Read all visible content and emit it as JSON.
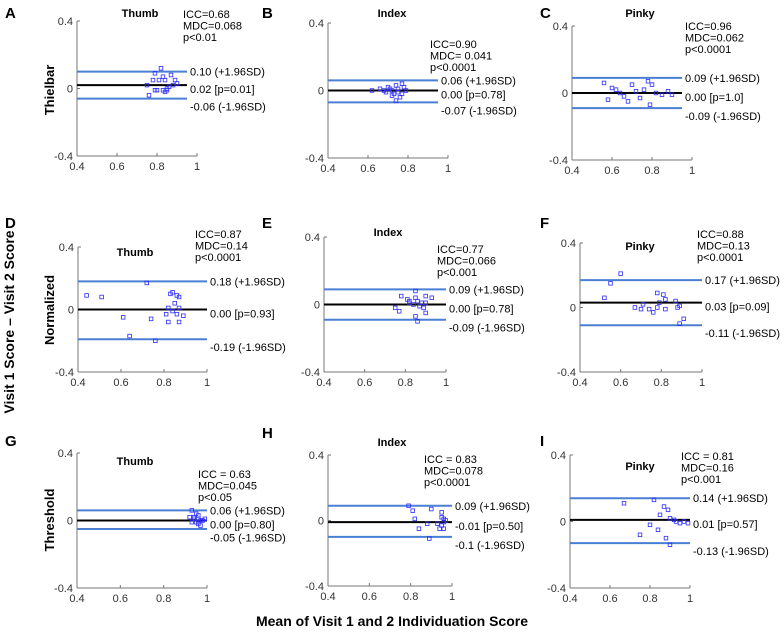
{
  "figure": {
    "ylabel": "Visit 1 Score – Visit 2 Score",
    "xlabel": "Mean of Visit 1 and 2 Individuation Score",
    "row_labels": [
      "Thielbar",
      "Normalized",
      "Threshold"
    ],
    "colors": {
      "limit_line": "#4a7fd4",
      "mean_line": "#000000",
      "points": "#2b2bff"
    }
  },
  "chart_data": [
    {
      "panel": "A",
      "type": "scatter",
      "title": "Thumb",
      "stats": [
        "ICC=0.68",
        "MDC=0.068",
        "p<0.01"
      ],
      "xlim": [
        0.4,
        1
      ],
      "ylim": [
        -0.4,
        0.4
      ],
      "xticks": [
        "0.4",
        "0.6",
        "0.8",
        "1"
      ],
      "yticks": [
        "0.4",
        "0",
        "-0.4"
      ],
      "upper": 0.1,
      "mean": 0.02,
      "lower": -0.06,
      "line_xmax": 0.95,
      "upper_label": "0.10 (+1.96SD)",
      "mean_label": "0.02 [p=0.01]",
      "lower_label": "-0.06 (-1.96SD)",
      "points": [
        [
          0.82,
          0.12
        ],
        [
          0.79,
          0.09
        ],
        [
          0.87,
          0.08
        ],
        [
          0.83,
          0.07
        ],
        [
          0.78,
          0.05
        ],
        [
          0.81,
          0.05
        ],
        [
          0.84,
          0.05
        ],
        [
          0.89,
          0.05
        ],
        [
          0.9,
          0.03
        ],
        [
          0.88,
          0.02
        ],
        [
          0.75,
          0.02
        ],
        [
          0.86,
          0.01
        ],
        [
          0.79,
          -0.01
        ],
        [
          0.83,
          -0.01
        ],
        [
          0.85,
          -0.01
        ],
        [
          0.84,
          -0.02
        ],
        [
          0.8,
          -0.01
        ],
        [
          0.76,
          -0.04
        ],
        [
          0.85,
          0.0
        ]
      ]
    },
    {
      "panel": "B",
      "type": "scatter",
      "title": "Index",
      "stats": [
        "ICC=0.90",
        "MDC= 0.041",
        "p<0.0001"
      ],
      "xlim": [
        0.4,
        1
      ],
      "ylim": [
        -0.4,
        0.4
      ],
      "xticks": [
        "0.4",
        "0.6",
        "0.8",
        "1"
      ],
      "yticks": [
        "0.4",
        "0",
        "-0.4"
      ],
      "upper": 0.06,
      "mean": 0.0,
      "lower": -0.07,
      "line_xmax": 0.95,
      "upper_label": "0.06 (+1.96SD)",
      "mean_label": "0.00 [p=0.78]",
      "lower_label": "-0.07 (-1.96SD)",
      "points": [
        [
          0.62,
          0.0
        ],
        [
          0.66,
          0.01
        ],
        [
          0.69,
          -0.01
        ],
        [
          0.7,
          0.02
        ],
        [
          0.72,
          0.0
        ],
        [
          0.73,
          -0.02
        ],
        [
          0.74,
          0.03
        ],
        [
          0.75,
          0.01
        ],
        [
          0.76,
          -0.04
        ],
        [
          0.77,
          0.04
        ],
        [
          0.78,
          0.02
        ],
        [
          0.74,
          -0.06
        ],
        [
          0.72,
          -0.03
        ],
        [
          0.79,
          0.0
        ],
        [
          0.75,
          -0.01
        ],
        [
          0.71,
          0.01
        ],
        [
          0.77,
          -0.02
        ],
        [
          0.68,
          0.0
        ]
      ]
    },
    {
      "panel": "C",
      "type": "scatter",
      "title": "Pinky",
      "stats": [
        "ICC=0.96",
        "MDC=0.062",
        "p<0.0001"
      ],
      "xlim": [
        0.4,
        1
      ],
      "ylim": [
        -0.4,
        0.4
      ],
      "xticks": [
        "0.4",
        "0.6",
        "0.8",
        "1"
      ],
      "yticks": [
        "0.4",
        "0",
        "-0.4"
      ],
      "upper": 0.09,
      "mean": 0.0,
      "lower": -0.09,
      "line_xmax": 0.95,
      "upper_label": "0.09 (+1.96SD)",
      "mean_label": "0.00 [p=1.0]",
      "lower_label": "-0.09 (-1.96SD)",
      "points": [
        [
          0.56,
          0.06
        ],
        [
          0.6,
          0.03
        ],
        [
          0.64,
          0.0
        ],
        [
          0.66,
          -0.02
        ],
        [
          0.7,
          0.05
        ],
        [
          0.72,
          0.01
        ],
        [
          0.74,
          -0.03
        ],
        [
          0.76,
          0.02
        ],
        [
          0.78,
          0.07
        ],
        [
          0.79,
          -0.07
        ],
        [
          0.8,
          0.05
        ],
        [
          0.82,
          0.0
        ],
        [
          0.85,
          -0.01
        ],
        [
          0.88,
          0.01
        ],
        [
          0.9,
          -0.01
        ],
        [
          0.68,
          -0.05
        ],
        [
          0.62,
          0.02
        ],
        [
          0.58,
          -0.04
        ]
      ]
    },
    {
      "panel": "D",
      "type": "scatter",
      "title": "Thumb",
      "stats": [
        "ICC=0.87",
        "MDC=0.14",
        "p<0.0001"
      ],
      "xlim": [
        0.4,
        1
      ],
      "ylim": [
        -0.4,
        0.4
      ],
      "xticks": [
        "0.4",
        "0.6",
        "0.8",
        "1"
      ],
      "yticks": [
        "0.4",
        "0",
        "-0.4"
      ],
      "upper": 0.18,
      "mean": 0.0,
      "lower": -0.19,
      "line_xmax": 1.0,
      "upper_label": "0.18 (+1.96SD)",
      "mean_label": "0.00 [p=0.93]",
      "lower_label": "-0.19 (-1.96SD)",
      "points": [
        [
          0.44,
          0.09
        ],
        [
          0.51,
          0.08
        ],
        [
          0.72,
          0.17
        ],
        [
          0.84,
          0.11
        ],
        [
          0.83,
          0.1
        ],
        [
          0.86,
          0.09
        ],
        [
          0.87,
          0.08
        ],
        [
          0.85,
          0.04
        ],
        [
          0.82,
          0.01
        ],
        [
          0.87,
          0.01
        ],
        [
          0.84,
          -0.01
        ],
        [
          0.81,
          -0.03
        ],
        [
          0.86,
          -0.03
        ],
        [
          0.89,
          -0.04
        ],
        [
          0.61,
          -0.05
        ],
        [
          0.74,
          -0.06
        ],
        [
          0.82,
          -0.08
        ],
        [
          0.87,
          -0.08
        ],
        [
          0.64,
          -0.17
        ],
        [
          0.76,
          -0.2
        ]
      ]
    },
    {
      "panel": "E",
      "type": "scatter",
      "title": "Index",
      "stats": [
        "ICC=0.77",
        "MDC=0.066",
        "p<0.001"
      ],
      "xlim": [
        0.4,
        1
      ],
      "ylim": [
        -0.4,
        0.4
      ],
      "xticks": [
        "0.4",
        "0.6",
        "0.8",
        "1"
      ],
      "yticks": [
        "0.4",
        "0",
        "-0.4"
      ],
      "upper": 0.09,
      "mean": 0.0,
      "lower": -0.09,
      "line_xmax": 1.0,
      "upper_label": "0.09 (+1.96SD)",
      "mean_label": "0.00 [p=0.78]",
      "lower_label": "-0.09 (-1.96SD)",
      "points": [
        [
          0.85,
          0.08
        ],
        [
          0.78,
          0.05
        ],
        [
          0.81,
          0.03
        ],
        [
          0.82,
          0.02
        ],
        [
          0.85,
          0.04
        ],
        [
          0.9,
          0.05
        ],
        [
          0.93,
          0.04
        ],
        [
          0.86,
          0.02
        ],
        [
          0.88,
          0.01
        ],
        [
          0.9,
          0.01
        ],
        [
          0.84,
          0.0
        ],
        [
          0.87,
          -0.01
        ],
        [
          0.89,
          -0.02
        ],
        [
          0.75,
          -0.02
        ],
        [
          0.77,
          -0.04
        ],
        [
          0.9,
          -0.05
        ],
        [
          0.85,
          -0.07
        ],
        [
          0.86,
          -0.1
        ],
        [
          0.82,
          0.01
        ]
      ]
    },
    {
      "panel": "F",
      "type": "scatter",
      "title": "Pinky",
      "stats": [
        "ICC=0.88",
        "MDC=0.13",
        "p<0.0001"
      ],
      "xlim": [
        0.4,
        1
      ],
      "ylim": [
        -0.4,
        0.4
      ],
      "xticks": [
        "0.4",
        "0.6",
        "0.8",
        "1"
      ],
      "yticks": [
        "0.4",
        "0",
        "-0.4"
      ],
      "upper": 0.17,
      "mean": 0.03,
      "lower": -0.11,
      "line_xmax": 1.0,
      "upper_label": "0.17 (+1.96SD)",
      "mean_label": "0.03 [p=0.09]",
      "lower_label": "-0.11 (-1.96SD)",
      "points": [
        [
          0.6,
          0.21
        ],
        [
          0.55,
          0.15
        ],
        [
          0.52,
          0.06
        ],
        [
          0.78,
          0.09
        ],
        [
          0.81,
          0.08
        ],
        [
          0.82,
          0.05
        ],
        [
          0.87,
          0.04
        ],
        [
          0.79,
          0.03
        ],
        [
          0.71,
          0.02
        ],
        [
          0.67,
          0.0
        ],
        [
          0.7,
          -0.01
        ],
        [
          0.74,
          -0.01
        ],
        [
          0.76,
          -0.03
        ],
        [
          0.78,
          0.0
        ],
        [
          0.82,
          -0.01
        ],
        [
          0.88,
          0.0
        ],
        [
          0.89,
          0.01
        ],
        [
          0.91,
          -0.07
        ],
        [
          0.89,
          -0.1
        ]
      ]
    },
    {
      "panel": "G",
      "type": "scatter",
      "title": "Thumb",
      "stats": [
        "ICC = 0.63",
        "MDC=0.045",
        "p<0.05"
      ],
      "xlim": [
        0.4,
        1
      ],
      "ylim": [
        -0.4,
        0.4
      ],
      "xticks": [
        "0.4",
        "0.6",
        "0.8",
        "1"
      ],
      "yticks": [
        "0.4",
        "0",
        "-0.4"
      ],
      "upper": 0.06,
      "mean": 0.0,
      "lower": -0.05,
      "line_xmax": 1.0,
      "upper_label": "0.06 (+1.96SD)",
      "mean_label": "0.00 [p=0.80]",
      "lower_label": "-0.05 (-1.96SD)",
      "points": [
        [
          0.93,
          0.06
        ],
        [
          0.95,
          0.04
        ],
        [
          0.96,
          0.03
        ],
        [
          0.92,
          0.02
        ],
        [
          0.94,
          0.01
        ],
        [
          0.97,
          0.0
        ],
        [
          0.95,
          -0.01
        ],
        [
          0.98,
          0.0
        ],
        [
          0.96,
          -0.02
        ],
        [
          0.93,
          -0.01
        ],
        [
          0.99,
          0.01
        ],
        [
          0.97,
          -0.03
        ],
        [
          0.94,
          0.02
        ],
        [
          0.96,
          0.01
        ]
      ]
    },
    {
      "panel": "H",
      "type": "scatter",
      "title": "Index",
      "stats": [
        "ICC = 0.83",
        "MDC=0.078",
        "p<0.0001"
      ],
      "xlim": [
        0.4,
        1
      ],
      "ylim": [
        -0.4,
        0.4
      ],
      "xticks": [
        "0.4",
        "0.6",
        "0.8",
        "1"
      ],
      "yticks": [
        "0.4",
        "0",
        "-0.4"
      ],
      "upper": 0.09,
      "mean": -0.01,
      "lower": -0.1,
      "line_xmax": 1.0,
      "upper_label": "0.09 (+1.96SD)",
      "mean_label": "-0.01 [p=0.50]",
      "lower_label": "-0.1 (-1.96SD)",
      "points": [
        [
          0.79,
          0.09
        ],
        [
          0.81,
          0.06
        ],
        [
          0.9,
          0.07
        ],
        [
          0.95,
          0.05
        ],
        [
          0.82,
          0.01
        ],
        [
          0.95,
          0.02
        ],
        [
          0.96,
          0.01
        ],
        [
          0.97,
          0.0
        ],
        [
          0.88,
          -0.02
        ],
        [
          0.93,
          -0.02
        ],
        [
          0.95,
          -0.03
        ],
        [
          0.84,
          -0.05
        ],
        [
          0.94,
          -0.05
        ],
        [
          0.96,
          -0.05
        ],
        [
          0.89,
          -0.11
        ],
        [
          0.96,
          -0.01
        ]
      ]
    },
    {
      "panel": "I",
      "type": "scatter",
      "title": "Pinky",
      "stats": [
        "ICC = 0.81",
        "MDC=0.16",
        "p<0.001"
      ],
      "xlim": [
        0.4,
        1
      ],
      "ylim": [
        -0.4,
        0.4
      ],
      "xticks": [
        "0.4",
        "0.6",
        "0.8",
        "1"
      ],
      "yticks": [
        "0.4",
        "0",
        "-0.4"
      ],
      "upper": 0.14,
      "mean": 0.01,
      "lower": -0.13,
      "line_xmax": 1.0,
      "upper_label": "0.14 (+1.96SD)",
      "mean_label": "0.01 [p=0.57]",
      "lower_label": "-0.13 (-1.96SD)",
      "points": [
        [
          0.67,
          0.11
        ],
        [
          0.82,
          0.13
        ],
        [
          0.87,
          0.09
        ],
        [
          0.89,
          0.07
        ],
        [
          0.85,
          0.04
        ],
        [
          0.9,
          0.02
        ],
        [
          0.93,
          0.0
        ],
        [
          0.95,
          -0.01
        ],
        [
          0.97,
          0.0
        ],
        [
          0.99,
          -0.01
        ],
        [
          0.8,
          -0.02
        ],
        [
          0.84,
          -0.05
        ],
        [
          0.75,
          -0.08
        ],
        [
          0.88,
          -0.1
        ],
        [
          0.9,
          -0.14
        ],
        [
          0.92,
          0.01
        ]
      ]
    }
  ]
}
